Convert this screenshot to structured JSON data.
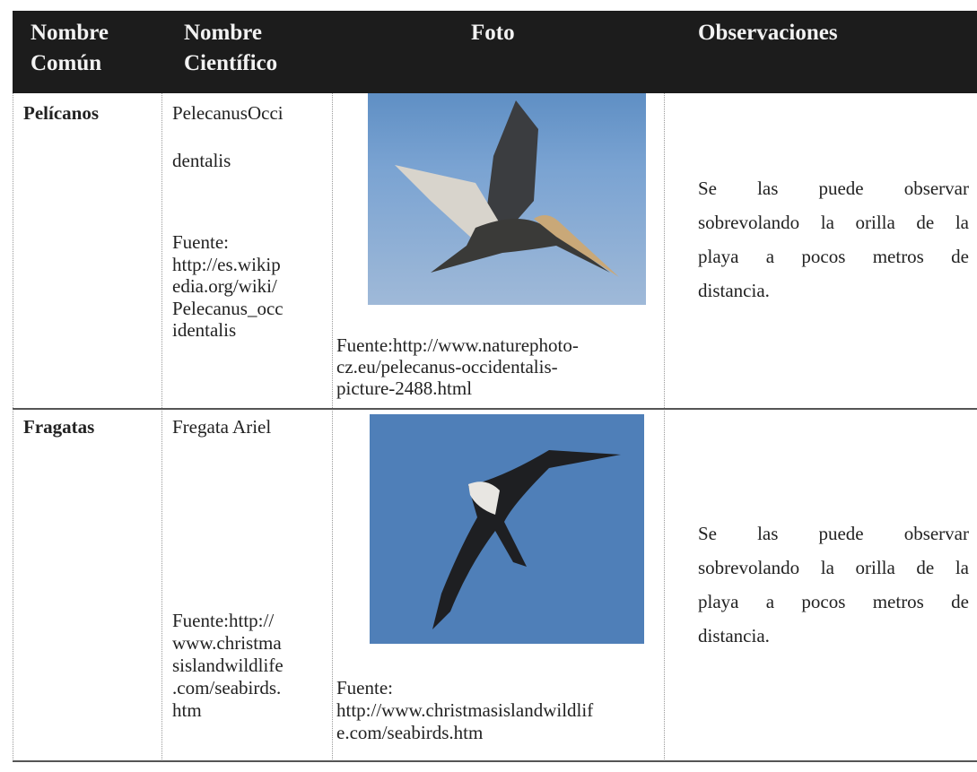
{
  "table": {
    "header": [
      [
        "Nombre",
        "Común"
      ],
      [
        "Nombre",
        "Científico"
      ],
      [
        "Foto"
      ],
      [
        "Observaciones"
      ]
    ],
    "rows": [
      {
        "common_name": "Pelícanos",
        "scientific_name": [
          "PelecanusOcci",
          "dentalis"
        ],
        "source": [
          "Fuente:",
          "http://es.wikip",
          "edia.org/wiki/",
          "Pelecanus_occ",
          "identalis"
        ],
        "photo_caption": [
          "Fuente:http://www.naturephoto-",
          "cz.eu/pelecanus-occidentalis-",
          "picture-2488.html"
        ],
        "observation": [
          "Se las puede observar",
          "sobrevolando la orilla de la",
          "playa a pocos metros de",
          "distancia."
        ]
      },
      {
        "common_name": "Fragatas",
        "scientific_name": [
          "Fregata Ariel"
        ],
        "source": [
          "Fuente:http://",
          "www.christma",
          "sislandwildlife",
          ".com/seabirds.",
          "htm"
        ],
        "photo_caption": [
          "Fuente:",
          "http://www.christmasislandwildlif",
          "e.com/seabirds.htm"
        ],
        "observation": [
          "Se las puede observar",
          "sobrevolando la orilla de la",
          "playa a pocos metros de",
          "distancia."
        ]
      }
    ]
  }
}
